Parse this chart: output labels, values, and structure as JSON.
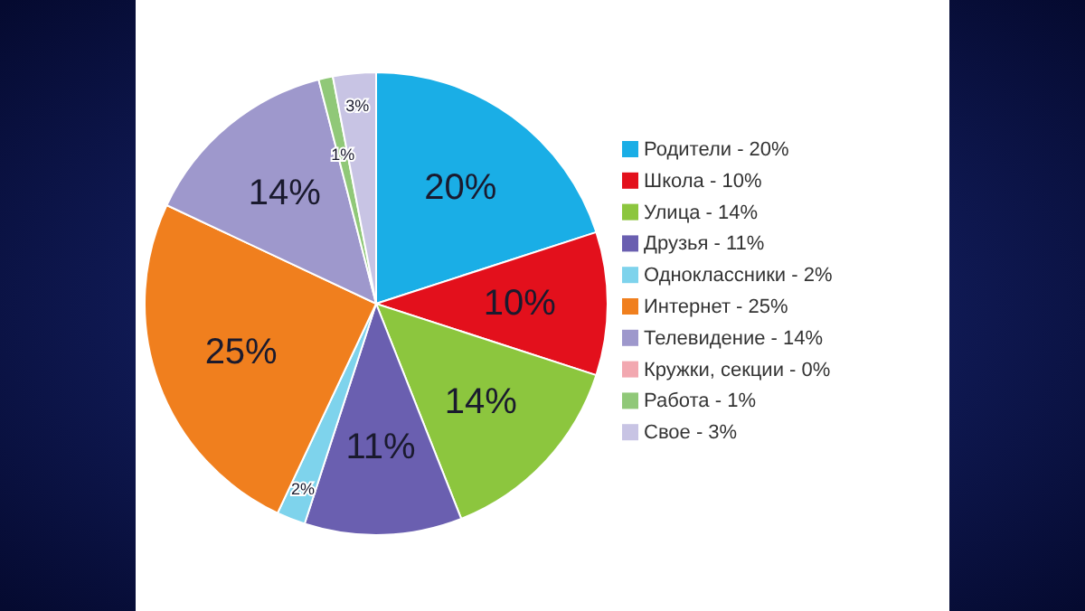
{
  "chart_data": {
    "type": "pie",
    "categories": [
      "Родители - 20%",
      "Школа - 10%",
      "Улица - 14%",
      "Друзья - 11%",
      "Одноклассники - 2%",
      "Интернет - 25%",
      "Телевидение - 14%",
      "Кружки, секции - 0%",
      "Работа - 1%",
      "Свое - 3%"
    ],
    "values": [
      20,
      10,
      14,
      11,
      2,
      25,
      14,
      0,
      1,
      3
    ],
    "colors": [
      "#1aaee6",
      "#e3101c",
      "#8cc63e",
      "#6a5fb0",
      "#7ed3ec",
      "#f07f1e",
      "#9e98cc",
      "#f2a8b0",
      "#90c878",
      "#c8c4e4"
    ],
    "value_labels": [
      "20%",
      "10%",
      "14%",
      "11%",
      "2%",
      "25%",
      "14%",
      null,
      "1%",
      "3%"
    ],
    "legend": "right"
  }
}
